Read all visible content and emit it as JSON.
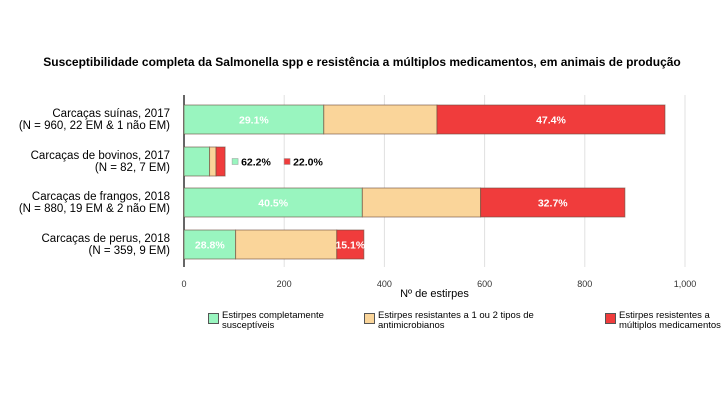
{
  "chart_data": {
    "type": "bar",
    "orientation": "horizontal",
    "stacked": true,
    "title": "Susceptibilidade completa da Salmonella spp e resistência a múltiplos medicamentos, em animais de produção",
    "xlabel": "Nº de estirpes",
    "ylabel": "",
    "xlim": [
      0,
      1000
    ],
    "xticks": [
      "0",
      "200",
      "400",
      "600",
      "800",
      "1,000"
    ],
    "grid": true,
    "legend_position": "bottom",
    "categories": [
      [
        "Carcaças suínas, 2017",
        "(N = 960, 22 EM & 1 não EM)"
      ],
      [
        "Carcaças de bovinos, 2017",
        "(N = 82, 7 EM)"
      ],
      [
        "Carcaças de frangos, 2018",
        "(N = 880, 19 EM & 2 não EM)"
      ],
      [
        "Carcaças de perus, 2018",
        "(N = 359, 9 EM)"
      ]
    ],
    "series": [
      {
        "name": "Estirpes completamente susceptíveis",
        "color": "#99f5bf",
        "values": [
          279,
          51,
          356,
          103
        ],
        "labels": [
          "29.1%",
          "62.2%",
          "40.5%",
          "28.8%"
        ]
      },
      {
        "name": "Estirpes resistantes a 1 ou 2 tipos de antimicrobianos",
        "color": "#fad59a",
        "values": [
          226,
          13,
          236,
          202
        ],
        "labels": [
          "",
          "",
          "",
          ""
        ]
      },
      {
        "name": "Estirpes resistentes a múltiplos medicamentos",
        "color": "#f03c3c",
        "values": [
          455,
          18,
          288,
          54
        ],
        "labels": [
          "47.4%",
          "22.0%",
          "32.7%",
          "15.1%"
        ]
      }
    ]
  }
}
